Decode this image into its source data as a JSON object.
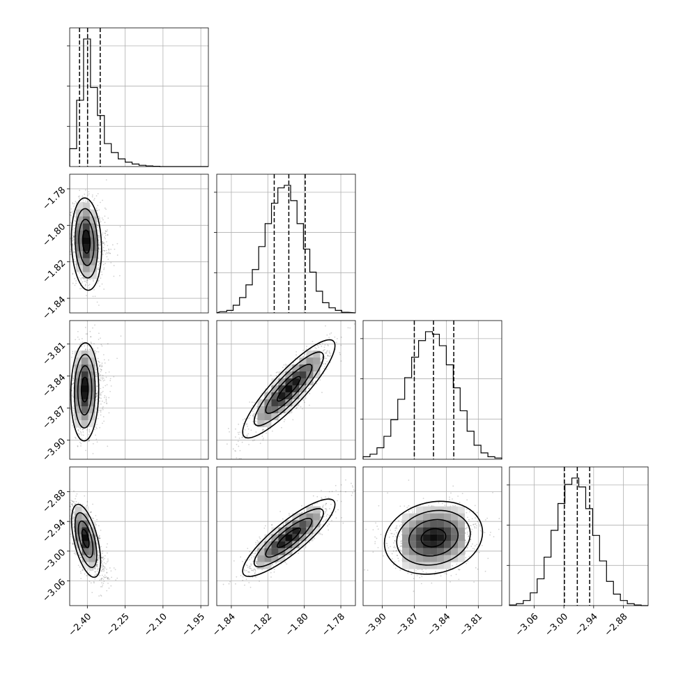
{
  "chart_data": {
    "type": "corner",
    "grid": true,
    "parameters": [
      {
        "range": [
          -2.47,
          -1.92
        ],
        "ticks": [
          -2.4,
          -2.25,
          -2.1,
          -1.95
        ],
        "tick_labels": [
          "−2.40",
          "−2.25",
          "−2.10",
          "−1.95"
        ],
        "quantiles": [
          -2.431,
          -2.399,
          -2.349
        ],
        "hist_edges_start": -2.47,
        "hist_bin_width": 0.0275,
        "hist_counts": [
          0.14,
          0.52,
          1.0,
          0.62,
          0.4,
          0.18,
          0.11,
          0.06,
          0.035,
          0.02,
          0.01,
          0.005,
          0.002,
          0,
          0,
          0,
          0,
          0,
          0,
          0
        ]
      },
      {
        "range": [
          -1.848,
          -1.772
        ],
        "ticks": [
          -1.84,
          -1.82,
          -1.8,
          -1.78
        ],
        "tick_labels": [
          "−1.84",
          "−1.82",
          "−1.80",
          "−1.78"
        ],
        "quantiles": [
          -1.8165,
          -1.8085,
          -1.7995
        ],
        "hist_edges_start": -1.846,
        "hist_bin_width": 0.0035,
        "hist_counts": [
          0.01,
          0.02,
          0.06,
          0.12,
          0.22,
          0.34,
          0.52,
          0.7,
          0.86,
          0.98,
          1.0,
          0.88,
          0.7,
          0.5,
          0.32,
          0.17,
          0.08,
          0.04,
          0.02,
          0.005
        ]
      },
      {
        "range": [
          -3.918,
          -3.788
        ],
        "ticks": [
          -3.9,
          -3.87,
          -3.84,
          -3.81
        ],
        "tick_labels": [
          "−3.90",
          "−3.87",
          "−3.84",
          "−3.81"
        ],
        "quantiles": [
          -3.87,
          -3.852,
          -3.833
        ],
        "hist_edges_start": -3.918,
        "hist_bin_width": 0.0065,
        "hist_counts": [
          0.02,
          0.04,
          0.09,
          0.18,
          0.31,
          0.47,
          0.64,
          0.8,
          0.93,
          1.0,
          0.98,
          0.89,
          0.74,
          0.56,
          0.38,
          0.22,
          0.11,
          0.05,
          0.02,
          0.01
        ]
      },
      {
        "range": [
          -3.11,
          -2.83
        ],
        "ticks": [
          -3.06,
          -3.0,
          -2.94,
          -2.88
        ],
        "tick_labels": [
          "−3.06",
          "−3.00",
          "−2.94",
          "−2.88"
        ],
        "quantiles": [
          -2.999,
          -2.973,
          -2.948
        ],
        "hist_edges_start": -3.11,
        "hist_bin_width": 0.014,
        "hist_counts": [
          0.005,
          0.015,
          0.04,
          0.1,
          0.21,
          0.38,
          0.59,
          0.8,
          0.95,
          1.0,
          0.93,
          0.76,
          0.55,
          0.35,
          0.19,
          0.09,
          0.04,
          0.015,
          0.005,
          0.0
        ]
      }
    ],
    "pairs": [
      {
        "row": 1,
        "col": 0,
        "center": [
          -2.404,
          -1.8085
        ],
        "spread": [
          0.026,
          0.011
        ],
        "corr": -0.12,
        "skew_x": 0.9
      },
      {
        "row": 2,
        "col": 0,
        "center": [
          -2.41,
          -3.852
        ],
        "spread": [
          0.024,
          0.02
        ],
        "corr": 0.05,
        "skew_x": 0.9
      },
      {
        "row": 2,
        "col": 1,
        "center": [
          -1.8085,
          -3.852
        ],
        "spread": [
          0.011,
          0.02
        ],
        "corr": 0.88,
        "skew_x": 0
      },
      {
        "row": 3,
        "col": 0,
        "center": [
          -2.408,
          -2.973
        ],
        "spread": [
          0.025,
          0.032
        ],
        "corr": -0.55,
        "skew_x": 0.9
      },
      {
        "row": 3,
        "col": 1,
        "center": [
          -1.8085,
          -2.973
        ],
        "spread": [
          0.011,
          0.034
        ],
        "corr": 0.86,
        "skew_x": 0
      },
      {
        "row": 3,
        "col": 2,
        "center": [
          -3.852,
          -2.973
        ],
        "spread": [
          0.02,
          0.032
        ],
        "corr": 0.15,
        "skew_x": 0
      }
    ],
    "contour_levels_sigma": [
      0.5,
      1.0,
      1.5,
      2.0
    ]
  }
}
